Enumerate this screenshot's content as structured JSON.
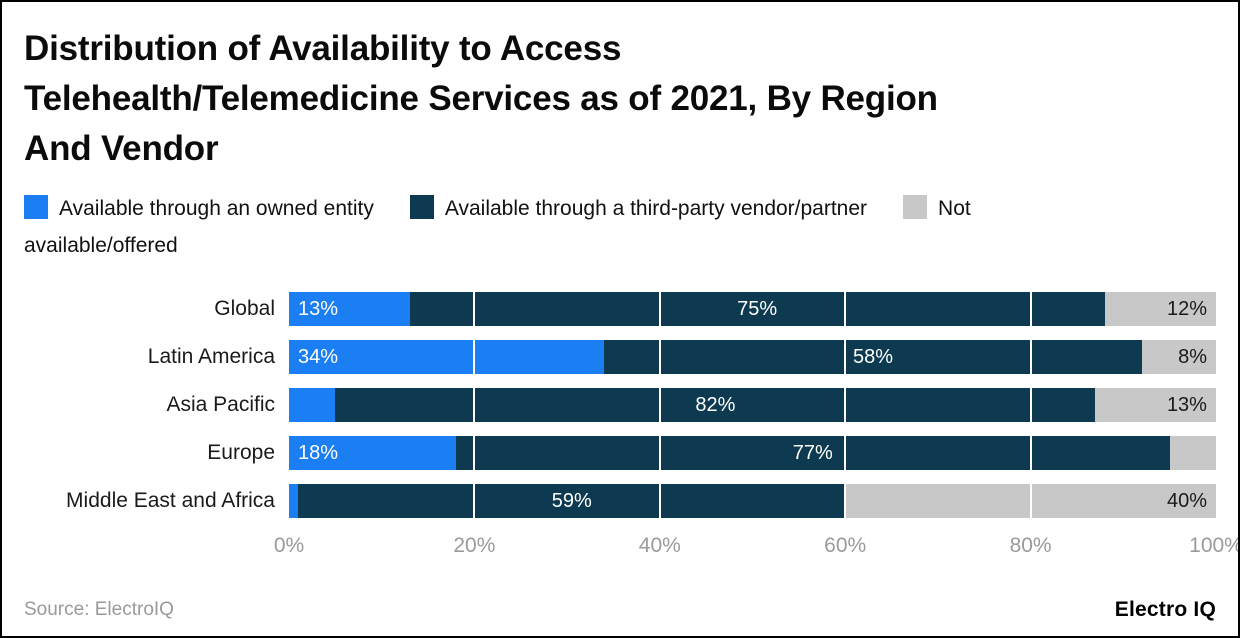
{
  "title": {
    "full": "Distribution of Availability to Access Telehealth/Telemedicine Services as of 2021, By Region And Vendor",
    "lines": [
      "Distribution of Availability to Access",
      "Telehealth/Telemedicine Services as of 2021, By Region",
      "And Vendor"
    ]
  },
  "legend": [
    {
      "label": "Available through an owned entity",
      "color": "#1b7ef2"
    },
    {
      "label": "Available through a third-party vendor/partner",
      "color": "#0d3a50"
    },
    {
      "label": "Not available/offered",
      "color": "#c8c8c8"
    }
  ],
  "source": "Source: ElectroIQ",
  "logo": "Electro IQ",
  "chart_data": {
    "type": "bar",
    "orientation": "horizontal",
    "stacked": true,
    "title": "Distribution of Availability to Access Telehealth/Telemedicine Services as of 2021, By Region And Vendor",
    "categories": [
      "Global",
      "Latin America",
      "Asia Pacific",
      "Europe",
      "Middle East and Africa"
    ],
    "series": [
      {
        "name": "Available through an owned entity",
        "color": "#1b7ef2",
        "values": [
          13,
          34,
          5,
          18,
          1
        ],
        "labels": [
          "13%",
          "34%",
          "",
          "18%",
          ""
        ]
      },
      {
        "name": "Available through a third-party vendor/partner",
        "color": "#0d3a50",
        "values": [
          75,
          58,
          82,
          77,
          59
        ],
        "labels": [
          "75%",
          "58%",
          "82%",
          "77%",
          "59%"
        ]
      },
      {
        "name": "Not available/offered",
        "color": "#c8c8c8",
        "values": [
          12,
          8,
          13,
          5,
          40
        ],
        "labels": [
          "12%",
          "8%",
          "13%",
          "",
          "40%"
        ]
      }
    ],
    "x_ticks": [
      "0%",
      "20%",
      "40%",
      "60%",
      "80%",
      "100%"
    ],
    "xlim": [
      0,
      100
    ],
    "grid": true,
    "legend_position": "top"
  }
}
